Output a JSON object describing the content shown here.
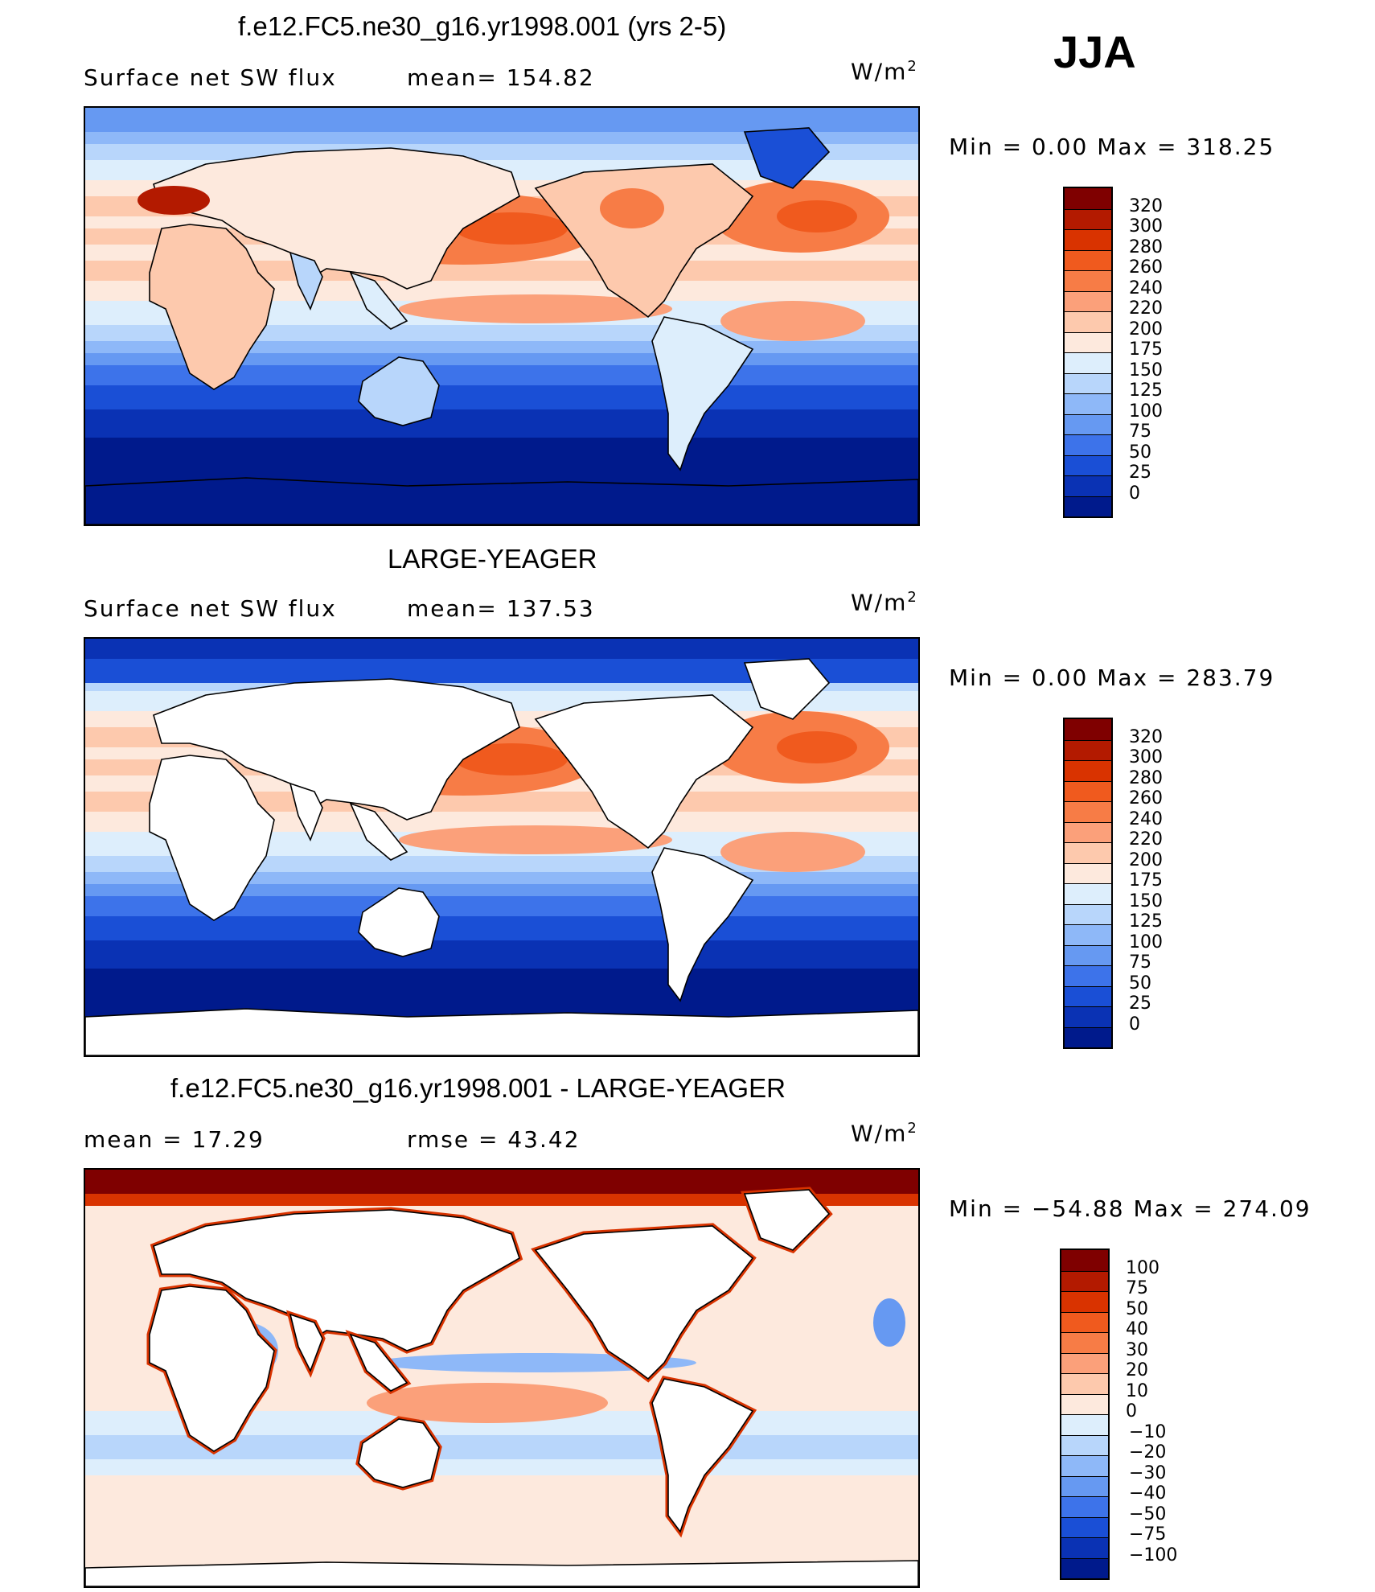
{
  "season": "JJA",
  "panels": [
    {
      "title": "f.e12.FC5.ne30_g16.yr1998.001 (yrs 2-5)",
      "left_text": "Surface net SW flux",
      "stat_text": "mean= 154.82",
      "units": "W/m",
      "units_sup": "2",
      "minmax": "Min =    0.00 Max = 318.25",
      "map_style": "model",
      "colorbar": {
        "labels": [
          "320",
          "300",
          "280",
          "260",
          "240",
          "220",
          "200",
          "175",
          "150",
          "125",
          "100",
          "75",
          "50",
          "25",
          "0"
        ],
        "colors": [
          "#7f0000",
          "#b31a00",
          "#d93300",
          "#f05a1e",
          "#f77c46",
          "#fba07a",
          "#fdc9ad",
          "#fde9dd",
          "#ddeefc",
          "#b8d6fb",
          "#8eb8f8",
          "#6699f2",
          "#3d73ea",
          "#1a4fd6",
          "#0a32b4",
          "#001a8c"
        ]
      }
    },
    {
      "title": "LARGE-YEAGER",
      "left_text": "Surface net SW flux",
      "stat_text": "mean= 137.53",
      "units": "W/m",
      "units_sup": "2",
      "minmax": "Min =    0.00 Max = 283.79",
      "map_style": "obs",
      "colorbar": {
        "labels": [
          "320",
          "300",
          "280",
          "260",
          "240",
          "220",
          "200",
          "175",
          "150",
          "125",
          "100",
          "75",
          "50",
          "25",
          "0"
        ],
        "colors": [
          "#7f0000",
          "#b31a00",
          "#d93300",
          "#f05a1e",
          "#f77c46",
          "#fba07a",
          "#fdc9ad",
          "#fde9dd",
          "#ddeefc",
          "#b8d6fb",
          "#8eb8f8",
          "#6699f2",
          "#3d73ea",
          "#1a4fd6",
          "#0a32b4",
          "#001a8c"
        ]
      }
    },
    {
      "title": "f.e12.FC5.ne30_g16.yr1998.001 - LARGE-YEAGER",
      "left_text": "mean =   17.29",
      "stat_text": "rmse =   43.42",
      "units": "W/m",
      "units_sup": "2",
      "minmax": "Min = −54.88 Max = 274.09",
      "map_style": "diff",
      "colorbar": {
        "labels": [
          "100",
          "75",
          "50",
          "40",
          "30",
          "20",
          "10",
          "0",
          "−10",
          "−20",
          "−30",
          "−40",
          "−50",
          "−75",
          "−100"
        ],
        "colors": [
          "#7f0000",
          "#b31a00",
          "#d93300",
          "#f05a1e",
          "#f77c46",
          "#fba07a",
          "#fdc9ad",
          "#fde9dd",
          "#ddeefc",
          "#b8d6fb",
          "#8eb8f8",
          "#6699f2",
          "#3d73ea",
          "#1a4fd6",
          "#0a32b4",
          "#001a8c"
        ]
      }
    }
  ]
}
